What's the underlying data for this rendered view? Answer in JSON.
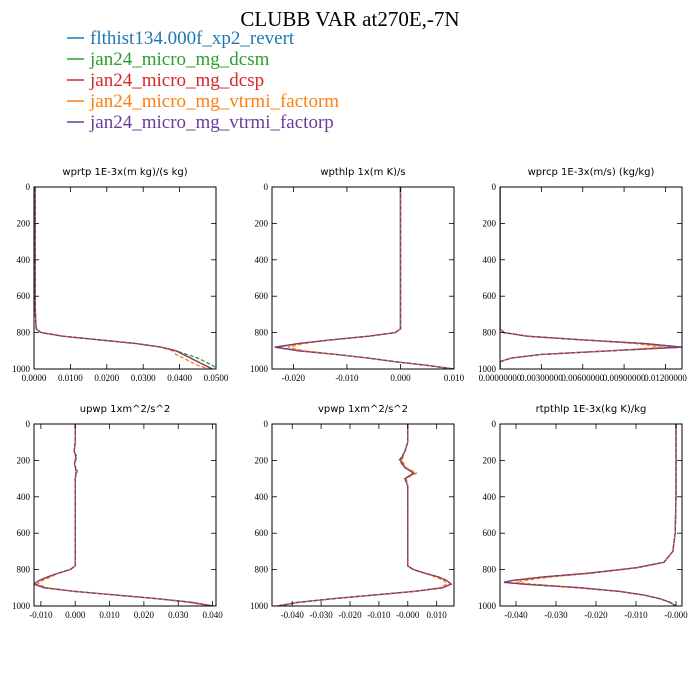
{
  "figure": {
    "title": "CLUBB VAR at270E,-7N"
  },
  "legend": [
    {
      "name": "flthist134.000f_xp2_revert",
      "color": "#1f77b4"
    },
    {
      "name": "jan24_micro_mg_dcsm",
      "color": "#2ca02c"
    },
    {
      "name": "jan24_micro_mg_dcsp",
      "color": "#d62728"
    },
    {
      "name": "jan24_micro_mg_vtrmi_factorm",
      "color": "#ff7f0e"
    },
    {
      "name": "jan24_micro_mg_vtrmi_factorp",
      "color": "#6a3d9a"
    }
  ],
  "chart_data": [
    {
      "type": "line",
      "title": "wprtp  1E-3x(m kg)/(s kg)",
      "xlim": [
        0.0,
        0.05
      ],
      "ylim": [
        1000,
        0
      ],
      "xticks": [
        0.0,
        0.01,
        0.02,
        0.03,
        0.04,
        0.05
      ],
      "xtick_labels": [
        "0.0000",
        "0.0100",
        "0.0200",
        "0.0300",
        "0.0400",
        "0.0500"
      ],
      "yticks": [
        0,
        200,
        400,
        600,
        800,
        1000
      ],
      "ytick_labels": [
        "0",
        "200",
        "400",
        "600",
        "800",
        "1000"
      ],
      "y": [
        0,
        100,
        200,
        300,
        400,
        500,
        600,
        700,
        780,
        800,
        820,
        840,
        860,
        880,
        900,
        920,
        940,
        960,
        980,
        1000
      ],
      "series": [
        {
          "name": "flthist134.000f_xp2_revert",
          "values": [
            0.0003,
            0.0003,
            0.0003,
            0.0003,
            0.0003,
            0.0003,
            0.0003,
            0.0004,
            0.0006,
            0.002,
            0.008,
            0.018,
            0.028,
            0.035,
            0.039,
            0.041,
            0.043,
            0.045,
            0.047,
            0.049
          ]
        },
        {
          "name": "jan24_micro_mg_dcsm",
          "values": [
            0.0003,
            0.0003,
            0.0003,
            0.0003,
            0.0003,
            0.0003,
            0.0003,
            0.0004,
            0.0006,
            0.002,
            0.008,
            0.018,
            0.028,
            0.035,
            0.039,
            0.042,
            0.045,
            0.047,
            0.049,
            0.0505
          ]
        },
        {
          "name": "jan24_micro_mg_dcsp",
          "values": [
            0.0003,
            0.0003,
            0.0003,
            0.0003,
            0.0003,
            0.0003,
            0.0003,
            0.0004,
            0.0006,
            0.002,
            0.008,
            0.018,
            0.028,
            0.035,
            0.039,
            0.041,
            0.043,
            0.045,
            0.047,
            0.049
          ]
        },
        {
          "name": "jan24_micro_mg_vtrmi_factorm",
          "values": [
            0.0003,
            0.0003,
            0.0003,
            0.0003,
            0.0003,
            0.0003,
            0.0003,
            0.0004,
            0.0006,
            0.002,
            0.008,
            0.018,
            0.028,
            0.035,
            0.038,
            0.039,
            0.041,
            0.043,
            0.045,
            0.048
          ]
        },
        {
          "name": "jan24_micro_mg_vtrmi_factorp",
          "values": [
            0.0003,
            0.0003,
            0.0003,
            0.0003,
            0.0003,
            0.0003,
            0.0003,
            0.0004,
            0.0006,
            0.002,
            0.008,
            0.018,
            0.028,
            0.035,
            0.039,
            0.041,
            0.043,
            0.045,
            0.047,
            0.049
          ]
        }
      ]
    },
    {
      "type": "line",
      "title": "wpthlp  1x(m K)/s",
      "xlim": [
        -0.024,
        0.01
      ],
      "ylim": [
        1000,
        0
      ],
      "xticks": [
        -0.02,
        -0.01,
        0.0,
        0.01
      ],
      "xtick_labels": [
        "-0.020",
        "-0.010",
        "0.000",
        "0.010"
      ],
      "yticks": [
        0,
        200,
        400,
        600,
        800,
        1000
      ],
      "ytick_labels": [
        "0",
        "200",
        "400",
        "600",
        "800",
        "1000"
      ],
      "y": [
        0,
        200,
        400,
        600,
        780,
        800,
        820,
        840,
        860,
        880,
        900,
        920,
        940,
        960,
        980,
        1000
      ],
      "series": [
        {
          "name": "flthist134.000f_xp2_revert",
          "values": [
            0.0,
            0.0,
            0.0,
            0.0,
            0.0,
            -0.001,
            -0.006,
            -0.013,
            -0.019,
            -0.0235,
            -0.019,
            -0.012,
            -0.006,
            -0.001,
            0.005,
            0.01
          ]
        },
        {
          "name": "jan24_micro_mg_dcsm",
          "values": [
            0.0,
            0.0,
            0.0,
            0.0,
            0.0,
            -0.001,
            -0.006,
            -0.013,
            -0.019,
            -0.023,
            -0.019,
            -0.012,
            -0.006,
            -0.001,
            0.005,
            0.01
          ]
        },
        {
          "name": "jan24_micro_mg_dcsp",
          "values": [
            0.0,
            0.0,
            0.0,
            0.0,
            0.0,
            -0.001,
            -0.006,
            -0.013,
            -0.019,
            -0.0235,
            -0.019,
            -0.012,
            -0.006,
            -0.001,
            0.005,
            0.01
          ]
        },
        {
          "name": "jan24_micro_mg_vtrmi_factorm",
          "values": [
            0.0,
            0.0,
            0.0,
            0.0,
            0.0,
            -0.001,
            -0.006,
            -0.013,
            -0.018,
            -0.021,
            -0.018,
            -0.012,
            -0.006,
            -0.001,
            0.005,
            0.01
          ]
        },
        {
          "name": "jan24_micro_mg_vtrmi_factorp",
          "values": [
            0.0,
            0.0,
            0.0,
            0.0,
            0.0,
            -0.001,
            -0.006,
            -0.013,
            -0.019,
            -0.0235,
            -0.019,
            -0.012,
            -0.006,
            -0.001,
            0.005,
            0.01
          ]
        }
      ]
    },
    {
      "type": "line",
      "title": "wprcp  1E-3x(m/s) (kg/kg)",
      "xlim": [
        0.0,
        0.0132
      ],
      "ylim": [
        1000,
        0
      ],
      "xticks": [
        0.0,
        0.003,
        0.006,
        0.009,
        0.012
      ],
      "xtick_labels": [
        "0.00000000",
        "0.00300000",
        "0.00600000",
        "0.00900000",
        "0.01200000"
      ],
      "yticks": [
        0,
        200,
        400,
        600,
        800,
        1000
      ],
      "ytick_labels": [
        "0",
        "200",
        "400",
        "600",
        "800",
        "1000"
      ],
      "y": [
        0,
        200,
        400,
        600,
        780,
        800,
        820,
        840,
        860,
        880,
        900,
        920,
        940,
        960,
        1000
      ],
      "series": [
        {
          "name": "flthist134.000f_xp2_revert",
          "values": [
            0.0,
            0.0,
            0.0,
            0.0,
            0.0,
            0.0003,
            0.002,
            0.006,
            0.0105,
            0.0132,
            0.008,
            0.003,
            0.0008,
            0.0,
            0.0
          ]
        },
        {
          "name": "jan24_micro_mg_dcsm",
          "values": [
            0.0,
            0.0,
            0.0,
            0.0,
            0.0,
            0.0003,
            0.002,
            0.006,
            0.0103,
            0.0128,
            0.008,
            0.003,
            0.0008,
            0.0,
            0.0
          ]
        },
        {
          "name": "jan24_micro_mg_dcsp",
          "values": [
            0.0,
            0.0,
            0.0,
            0.0,
            0.0,
            0.0003,
            0.002,
            0.006,
            0.0105,
            0.0132,
            0.008,
            0.003,
            0.0008,
            0.0,
            0.0
          ]
        },
        {
          "name": "jan24_micro_mg_vtrmi_factorm",
          "values": [
            0.0,
            0.0,
            0.0,
            0.0,
            0.0,
            0.0003,
            0.002,
            0.006,
            0.0098,
            0.0118,
            0.008,
            0.003,
            0.0008,
            0.0,
            0.0
          ]
        },
        {
          "name": "jan24_micro_mg_vtrmi_factorp",
          "values": [
            0.0,
            0.0,
            0.0,
            0.0,
            0.0,
            0.0003,
            0.002,
            0.006,
            0.0105,
            0.0132,
            0.008,
            0.003,
            0.0008,
            0.0,
            0.0
          ]
        }
      ]
    },
    {
      "type": "line",
      "title": "upwp  1xm^2/s^2",
      "xlim": [
        -0.012,
        0.041
      ],
      "ylim": [
        1000,
        0
      ],
      "xticks": [
        -0.01,
        0.0,
        0.01,
        0.02,
        0.03,
        0.04
      ],
      "xtick_labels": [
        "-0.010",
        "0.000",
        "0.010",
        "0.020",
        "0.030",
        "0.040"
      ],
      "yticks": [
        0,
        200,
        400,
        600,
        800,
        1000
      ],
      "ytick_labels": [
        "0",
        "200",
        "400",
        "600",
        "800",
        "1000"
      ],
      "y": [
        0,
        100,
        150,
        180,
        220,
        260,
        300,
        400,
        600,
        780,
        800,
        820,
        840,
        860,
        880,
        900,
        920,
        940,
        960,
        980,
        1000
      ],
      "series": [
        {
          "name": "flthist134.000f_xp2_revert",
          "values": [
            0.0,
            0.0,
            -0.0003,
            0.0002,
            -0.0002,
            0.0003,
            0.0,
            0.0,
            0.0,
            0.0,
            -0.0015,
            -0.005,
            -0.008,
            -0.0105,
            -0.012,
            -0.009,
            0.0,
            0.012,
            0.024,
            0.034,
            0.04
          ]
        },
        {
          "name": "jan24_micro_mg_dcsm",
          "values": [
            0.0,
            0.0,
            -0.0003,
            0.0005,
            -0.0002,
            0.0006,
            0.0,
            0.0,
            0.0,
            0.0,
            -0.0015,
            -0.005,
            -0.008,
            -0.0105,
            -0.012,
            -0.009,
            0.0,
            0.012,
            0.024,
            0.034,
            0.04
          ]
        },
        {
          "name": "jan24_micro_mg_dcsp",
          "values": [
            0.0,
            0.0,
            -0.0003,
            0.0002,
            -0.0002,
            0.0003,
            0.0,
            0.0,
            0.0,
            0.0,
            -0.0015,
            -0.005,
            -0.008,
            -0.0105,
            -0.012,
            -0.009,
            0.0,
            0.012,
            0.024,
            0.034,
            0.04
          ]
        },
        {
          "name": "jan24_micro_mg_vtrmi_factorm",
          "values": [
            0.0,
            0.0,
            -0.0003,
            0.0002,
            -0.0002,
            0.0003,
            0.0,
            0.0,
            0.0,
            0.0,
            -0.0015,
            -0.005,
            -0.007,
            -0.0095,
            -0.011,
            -0.008,
            0.0,
            0.012,
            0.024,
            0.033,
            0.039
          ]
        },
        {
          "name": "jan24_micro_mg_vtrmi_factorp",
          "values": [
            0.0,
            0.0,
            -0.0003,
            0.0002,
            -0.0002,
            0.0003,
            0.0,
            0.0,
            0.0,
            0.0,
            -0.0015,
            -0.005,
            -0.008,
            -0.0105,
            -0.012,
            -0.009,
            0.0,
            0.012,
            0.024,
            0.034,
            0.04
          ]
        }
      ]
    },
    {
      "type": "line",
      "title": "vpwp  1xm^2/s^2",
      "xlim": [
        -0.047,
        0.016
      ],
      "ylim": [
        1000,
        0
      ],
      "xticks": [
        -0.04,
        -0.03,
        -0.02,
        -0.01,
        0.0,
        0.01
      ],
      "xtick_labels": [
        "-0.040",
        "-0.030",
        "-0.020",
        "-0.010",
        "-0.000",
        "0.010"
      ],
      "yticks": [
        0,
        200,
        400,
        600,
        800,
        1000
      ],
      "ytick_labels": [
        "0",
        "200",
        "400",
        "600",
        "800",
        "1000"
      ],
      "y": [
        0,
        100,
        150,
        200,
        240,
        270,
        300,
        340,
        400,
        600,
        780,
        800,
        820,
        840,
        860,
        880,
        900,
        920,
        940,
        960,
        980,
        1000
      ],
      "series": [
        {
          "name": "flthist134.000f_xp2_revert",
          "values": [
            0.0,
            0.0,
            -0.001,
            -0.0025,
            -0.001,
            0.002,
            -0.001,
            0.0,
            0.0,
            0.0,
            0.0,
            0.002,
            0.006,
            0.0105,
            0.0135,
            0.015,
            0.012,
            0.002,
            -0.012,
            -0.026,
            -0.038,
            -0.045
          ]
        },
        {
          "name": "jan24_micro_mg_dcsm",
          "values": [
            0.0,
            0.0,
            -0.001,
            -0.003,
            -0.001,
            0.0025,
            -0.001,
            0.0,
            0.0,
            0.0,
            0.0,
            0.002,
            0.006,
            0.0105,
            0.0135,
            0.015,
            0.012,
            0.002,
            -0.012,
            -0.026,
            -0.038,
            -0.045
          ]
        },
        {
          "name": "jan24_micro_mg_dcsp",
          "values": [
            0.0,
            0.0,
            -0.001,
            -0.0025,
            -0.001,
            0.002,
            -0.001,
            0.0,
            0.0,
            0.0,
            0.0,
            0.002,
            0.006,
            0.0105,
            0.0135,
            0.015,
            0.012,
            0.002,
            -0.012,
            -0.026,
            -0.038,
            -0.045
          ]
        },
        {
          "name": "jan24_micro_mg_vtrmi_factorm",
          "values": [
            0.0,
            0.0,
            -0.001,
            -0.002,
            -0.0005,
            0.003,
            -0.0005,
            0.0,
            0.0,
            0.0,
            0.0,
            0.002,
            0.006,
            0.0095,
            0.0125,
            0.0135,
            0.011,
            0.002,
            -0.012,
            -0.026,
            -0.038,
            -0.044
          ]
        },
        {
          "name": "jan24_micro_mg_vtrmi_factorp",
          "values": [
            0.0,
            0.0,
            -0.001,
            -0.0025,
            -0.001,
            0.002,
            -0.001,
            0.0,
            0.0,
            0.0,
            0.0,
            0.002,
            0.006,
            0.0105,
            0.0135,
            0.015,
            0.012,
            0.002,
            -0.012,
            -0.026,
            -0.038,
            -0.045
          ]
        }
      ]
    },
    {
      "type": "line",
      "title": "rtpthlp  1E-3x(kg K)/kg",
      "xlim": [
        -0.044,
        0.0015
      ],
      "ylim": [
        1000,
        0
      ],
      "xticks": [
        -0.04,
        -0.03,
        -0.02,
        -0.01,
        0.0
      ],
      "xtick_labels": [
        "-0.040",
        "-0.030",
        "-0.020",
        "-0.010",
        "-0.000"
      ],
      "yticks": [
        0,
        200,
        400,
        600,
        800,
        1000
      ],
      "ytick_labels": [
        "0",
        "200",
        "400",
        "600",
        "800",
        "1000"
      ],
      "y": [
        0,
        200,
        400,
        600,
        700,
        760,
        790,
        820,
        840,
        860,
        870,
        880,
        900,
        920,
        940,
        960,
        980,
        1000
      ],
      "series": [
        {
          "name": "flthist134.000f_xp2_revert",
          "values": [
            0.0,
            0.0,
            0.0,
            -0.0002,
            -0.0008,
            -0.003,
            -0.01,
            -0.022,
            -0.033,
            -0.041,
            -0.043,
            -0.038,
            -0.024,
            -0.014,
            -0.008,
            -0.004,
            -0.0015,
            0.0
          ]
        },
        {
          "name": "jan24_micro_mg_dcsm",
          "values": [
            0.0,
            0.0,
            0.0,
            -0.0002,
            -0.0008,
            -0.003,
            -0.01,
            -0.022,
            -0.033,
            -0.041,
            -0.043,
            -0.038,
            -0.024,
            -0.014,
            -0.008,
            -0.004,
            -0.0015,
            0.0
          ]
        },
        {
          "name": "jan24_micro_mg_dcsp",
          "values": [
            0.0,
            0.0,
            0.0,
            -0.0002,
            -0.0008,
            -0.003,
            -0.01,
            -0.022,
            -0.033,
            -0.041,
            -0.043,
            -0.038,
            -0.024,
            -0.014,
            -0.008,
            -0.004,
            -0.0015,
            0.0
          ]
        },
        {
          "name": "jan24_micro_mg_vtrmi_factorm",
          "values": [
            0.0,
            0.0,
            0.0,
            -0.0002,
            -0.0008,
            -0.003,
            -0.0095,
            -0.021,
            -0.031,
            -0.038,
            -0.04,
            -0.036,
            -0.023,
            -0.014,
            -0.008,
            -0.004,
            -0.0015,
            0.0
          ]
        },
        {
          "name": "jan24_micro_mg_vtrmi_factorp",
          "values": [
            0.0,
            0.0,
            0.0,
            -0.0002,
            -0.0008,
            -0.003,
            -0.01,
            -0.022,
            -0.033,
            -0.041,
            -0.043,
            -0.038,
            -0.024,
            -0.014,
            -0.008,
            -0.004,
            -0.0015,
            0.0
          ]
        }
      ]
    }
  ]
}
